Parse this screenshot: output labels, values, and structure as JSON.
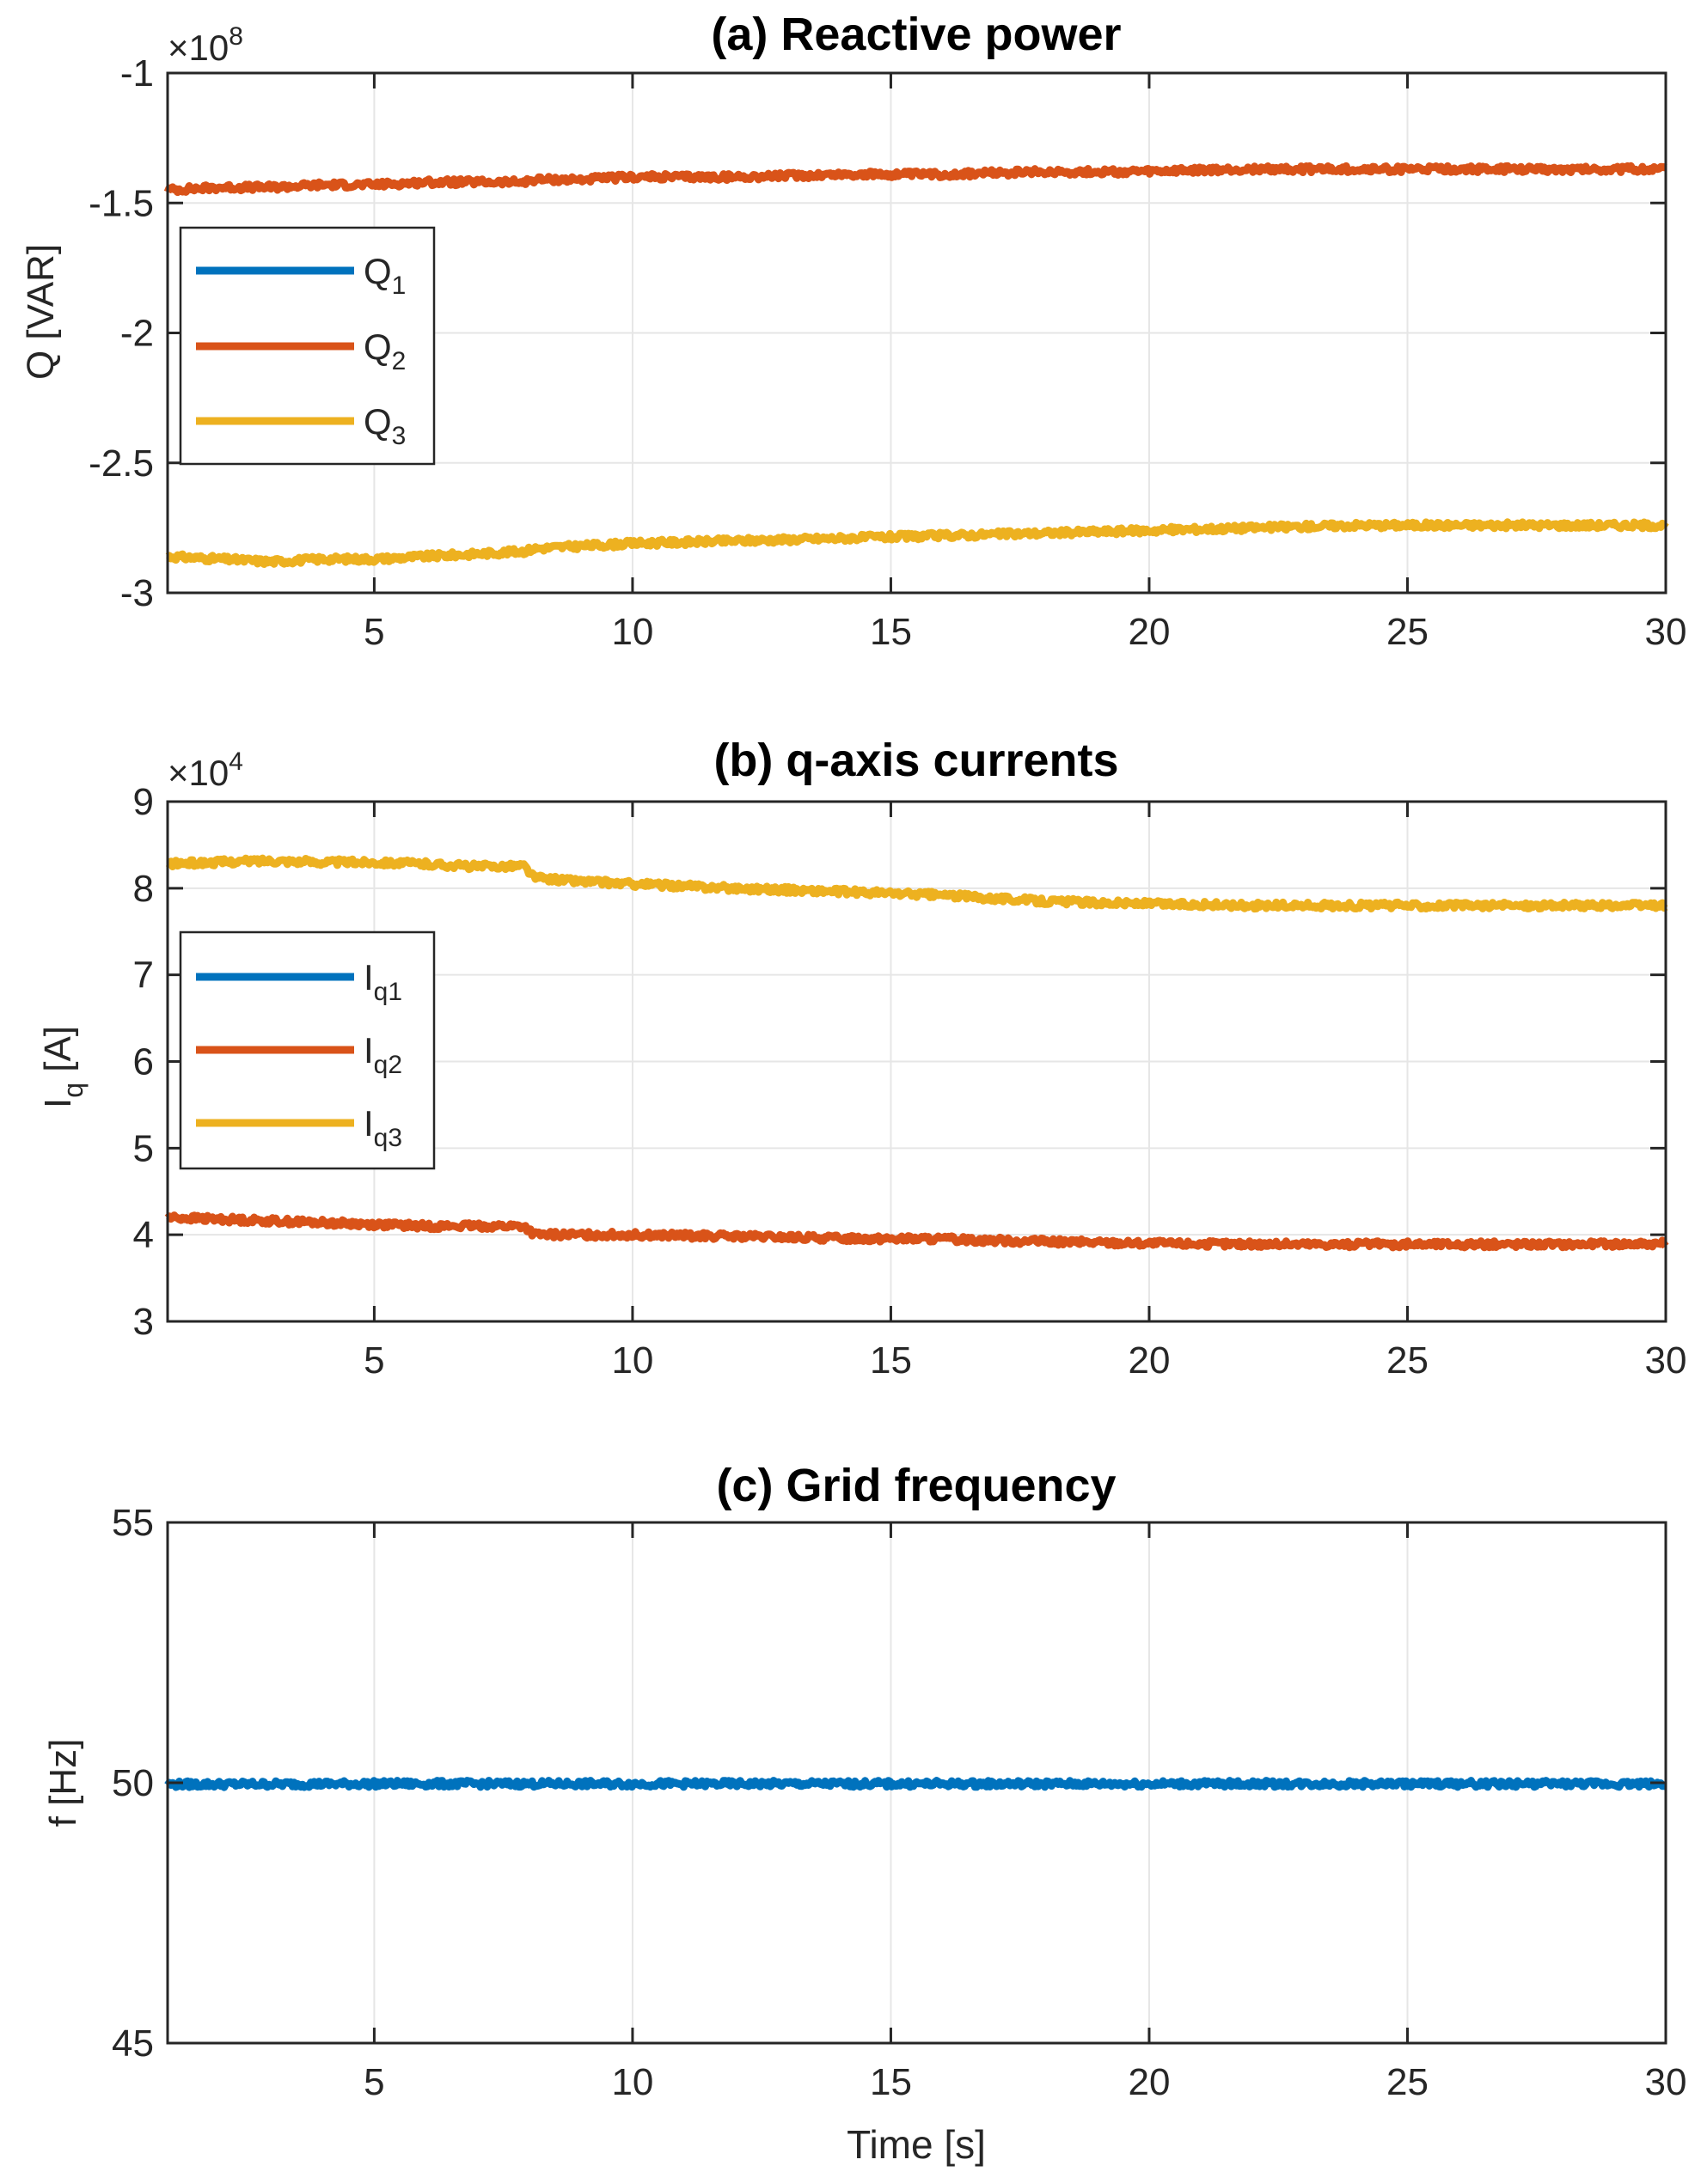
{
  "chart_data": [
    {
      "id": "a",
      "type": "line",
      "title": "(a) Reactive power",
      "xlabel": "",
      "ylabel": "Q [VAR]",
      "xlim": [
        1,
        30
      ],
      "ylim": [
        -3,
        -1
      ],
      "multiplier": "×10",
      "multiplier_exp": "8",
      "xticks": [
        5,
        10,
        15,
        20,
        25,
        30
      ],
      "xtick_labels": [
        "5",
        "10",
        "15",
        "20",
        "25",
        "30"
      ],
      "yticks": [
        -3,
        -2.5,
        -2,
        -1.5,
        -1
      ],
      "ytick_labels": [
        "-3",
        "-2.5",
        "-2",
        "-1.5",
        "-1"
      ],
      "grid": true,
      "legend": "upper-left",
      "series": [
        {
          "name": "Q",
          "sub": "1",
          "color": "#0072BD",
          "x": [],
          "y": []
        },
        {
          "name": "Q",
          "sub": "2",
          "color": "#D95319",
          "x": [
            1,
            2,
            3,
            4,
            5,
            6,
            7,
            7.9,
            8.1,
            9,
            10,
            12,
            14,
            16,
            18,
            20,
            22,
            24,
            26,
            28,
            30
          ],
          "y": [
            -1.45,
            -1.44,
            -1.44,
            -1.43,
            -1.43,
            -1.42,
            -1.42,
            -1.42,
            -1.41,
            -1.41,
            -1.4,
            -1.4,
            -1.39,
            -1.39,
            -1.38,
            -1.38,
            -1.37,
            -1.37,
            -1.37,
            -1.37,
            -1.37
          ]
        },
        {
          "name": "Q",
          "sub": "3",
          "color": "#EDB120",
          "x": [
            1,
            2,
            3,
            4,
            5,
            6,
            7,
            7.9,
            8.1,
            9,
            10,
            12,
            14,
            16,
            18,
            20,
            22,
            24,
            26,
            28,
            30
          ],
          "y": [
            -2.86,
            -2.87,
            -2.88,
            -2.87,
            -2.87,
            -2.86,
            -2.85,
            -2.84,
            -2.83,
            -2.82,
            -2.81,
            -2.8,
            -2.79,
            -2.78,
            -2.77,
            -2.76,
            -2.75,
            -2.74,
            -2.74,
            -2.74,
            -2.74
          ]
        }
      ]
    },
    {
      "id": "b",
      "type": "line",
      "title": "(b) q-axis currents",
      "xlabel": "",
      "ylabel": "I",
      "ylabel_sub": "q",
      "ylabel_suffix": " [A]",
      "xlim": [
        1,
        30
      ],
      "ylim": [
        3,
        9
      ],
      "multiplier": "×10",
      "multiplier_exp": "4",
      "xticks": [
        5,
        10,
        15,
        20,
        25,
        30
      ],
      "xtick_labels": [
        "5",
        "10",
        "15",
        "20",
        "25",
        "30"
      ],
      "yticks": [
        3,
        4,
        5,
        6,
        7,
        8,
        9
      ],
      "ytick_labels": [
        "3",
        "4",
        "5",
        "6",
        "7",
        "8",
        "9"
      ],
      "grid": true,
      "legend": "middle-left",
      "series": [
        {
          "name": "I",
          "sub": "q1",
          "color": "#0072BD",
          "x": [],
          "y": []
        },
        {
          "name": "I",
          "sub": "q2",
          "color": "#D95319",
          "x": [
            1,
            2,
            3,
            4,
            5,
            6,
            7,
            7.9,
            8.1,
            9,
            10,
            12,
            14,
            16,
            18,
            20,
            22,
            24,
            26,
            28,
            30
          ],
          "y": [
            4.2,
            4.18,
            4.16,
            4.14,
            4.12,
            4.1,
            4.1,
            4.1,
            4.0,
            4.0,
            4.0,
            3.98,
            3.96,
            3.95,
            3.92,
            3.9,
            3.89,
            3.89,
            3.89,
            3.89,
            3.9
          ]
        },
        {
          "name": "I",
          "sub": "q3",
          "color": "#EDB120",
          "x": [
            1,
            2,
            3,
            4,
            5,
            6,
            7,
            7.9,
            8.1,
            9,
            10,
            12,
            14,
            16,
            18,
            20,
            22,
            24,
            26,
            28,
            30
          ],
          "y": [
            8.28,
            8.3,
            8.32,
            8.3,
            8.3,
            8.28,
            8.25,
            8.26,
            8.12,
            8.08,
            8.05,
            8.0,
            7.96,
            7.92,
            7.85,
            7.82,
            7.8,
            7.8,
            7.8,
            7.8,
            7.8
          ]
        }
      ]
    },
    {
      "id": "c",
      "type": "line",
      "title": "(c) Grid frequency",
      "xlabel": "Time [s]",
      "ylabel": "f [Hz]",
      "xlim": [
        1,
        30
      ],
      "ylim": [
        45,
        55
      ],
      "xticks": [
        5,
        10,
        15,
        20,
        25,
        30
      ],
      "xtick_labels": [
        "5",
        "10",
        "15",
        "20",
        "25",
        "30"
      ],
      "yticks": [
        45,
        50,
        55
      ],
      "ytick_labels": [
        "45",
        "50",
        "55"
      ],
      "grid": true,
      "series": [
        {
          "name": "f",
          "color": "#0072BD",
          "x": [
            1,
            5,
            10,
            15,
            20,
            25,
            30
          ],
          "y": [
            49.97,
            49.98,
            49.98,
            49.98,
            49.98,
            49.98,
            49.98
          ]
        }
      ]
    }
  ],
  "colors": {
    "q1": "#0072BD",
    "q2": "#D95319",
    "q3": "#EDB120",
    "grid": "#e6e6e6",
    "axis": "#262626"
  }
}
